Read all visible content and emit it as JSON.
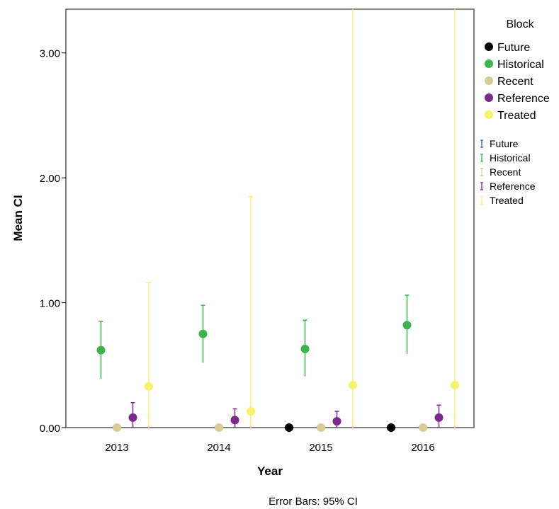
{
  "chart_data": {
    "type": "scatter",
    "title": "",
    "xlabel": "Year",
    "ylabel": "Mean CI",
    "categories": [
      "2013",
      "2014",
      "2015",
      "2016"
    ],
    "ylim": [
      0,
      3.35
    ],
    "yticks": [
      0,
      1,
      2,
      3
    ],
    "ytick_labels": [
      "0.00",
      "1.00",
      "2.00",
      "3.00"
    ],
    "grid": false,
    "legend_title": "Block",
    "legend_placement": "right",
    "footnote": "Error Bars: 95% CI",
    "series": [
      {
        "name": "Future",
        "color": "#000000",
        "errcolor": "#3f5fb0",
        "values": [
          null,
          null,
          0.0,
          0.0
        ],
        "lower": [
          null,
          null,
          0.0,
          0.0
        ],
        "upper": [
          null,
          null,
          0.0,
          0.0
        ]
      },
      {
        "name": "Historical",
        "color": "#3cb44b",
        "errcolor": "#3cb44b",
        "values": [
          0.62,
          0.75,
          0.63,
          0.82
        ],
        "lower": [
          0.39,
          0.52,
          0.41,
          0.59
        ],
        "upper": [
          0.85,
          0.98,
          0.86,
          1.06
        ]
      },
      {
        "name": "Recent",
        "color": "#d6cd93",
        "errcolor": "#d6cd93",
        "values": [
          0.0,
          0.0,
          0.0,
          0.0
        ],
        "lower": [
          0.0,
          0.0,
          0.0,
          0.0
        ],
        "upper": [
          0.0,
          0.0,
          0.0,
          0.0
        ]
      },
      {
        "name": "Reference",
        "color": "#7b2a8c",
        "errcolor": "#7b2a8c",
        "values": [
          0.08,
          0.06,
          0.05,
          0.08
        ],
        "lower": [
          0.0,
          0.0,
          0.0,
          0.0
        ],
        "upper": [
          0.2,
          0.15,
          0.13,
          0.18
        ]
      },
      {
        "name": "Treated",
        "color": "#f7f26a",
        "errcolor": "#f7f26a",
        "values": [
          0.33,
          0.13,
          0.34,
          0.34
        ],
        "lower": [
          0.0,
          0.0,
          0.0,
          0.0
        ],
        "upper": [
          1.16,
          1.85,
          3.35,
          3.35
        ]
      }
    ]
  }
}
